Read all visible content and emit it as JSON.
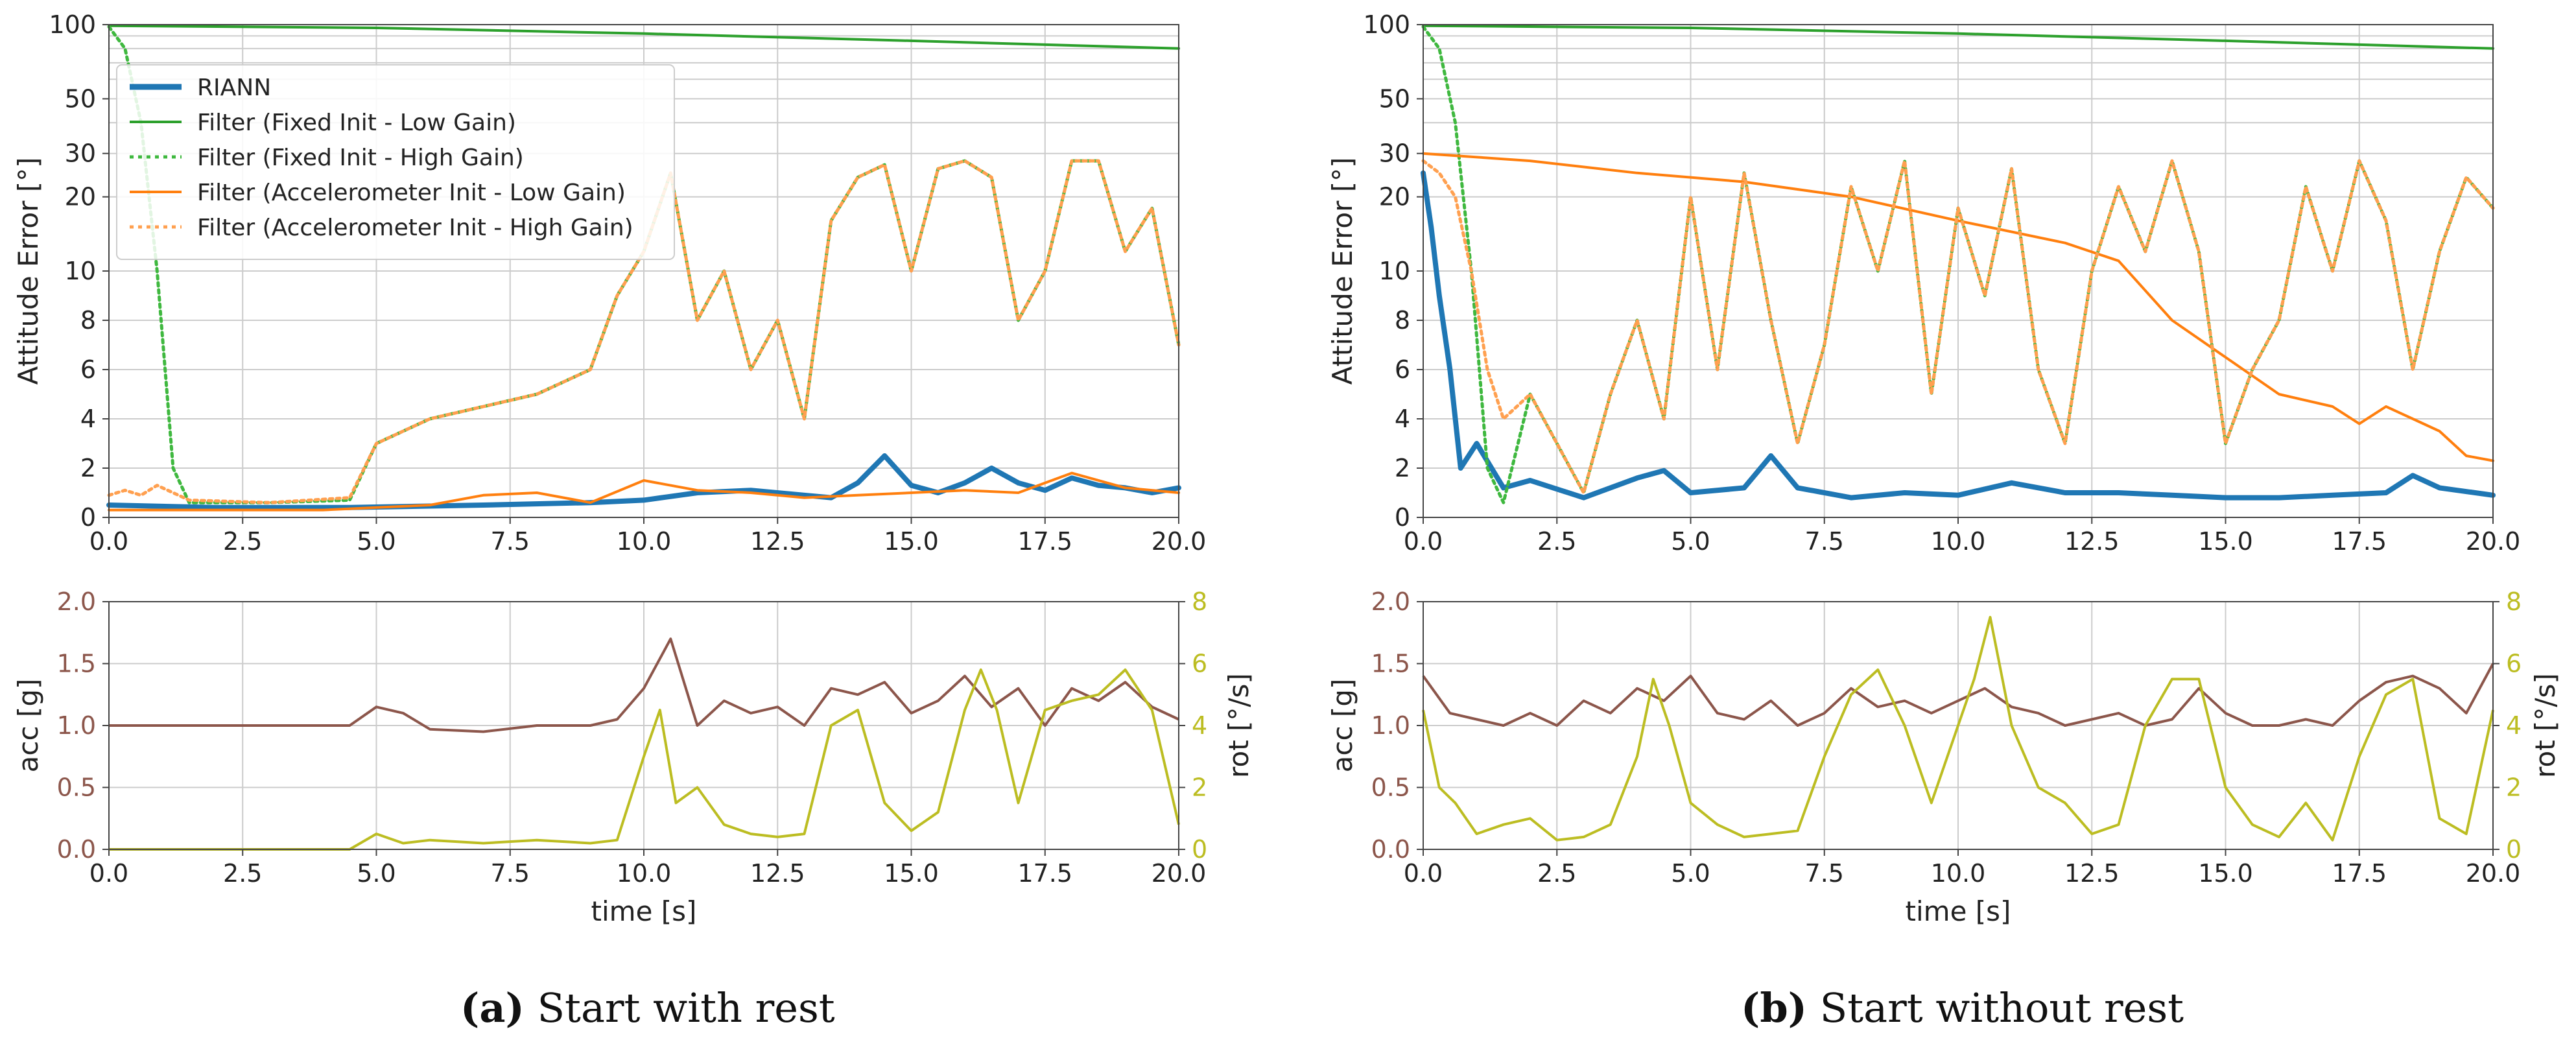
{
  "chart_data": [
    {
      "panel": "a",
      "type": "line",
      "subplot": "attitude-error",
      "ylabel": "Attitude Error [°]",
      "yscale": "piecewise: linear 0-10, log 10-100",
      "yticks": [
        "0",
        "2",
        "4",
        "6",
        "8",
        "10",
        "20",
        "30",
        "50",
        "100"
      ],
      "ylim": [
        0,
        100
      ],
      "xlim": [
        0,
        20
      ],
      "xticks": [
        "0.0",
        "2.5",
        "5.0",
        "7.5",
        "10.0",
        "12.5",
        "15.0",
        "17.5",
        "20.0"
      ],
      "legend": {
        "placement": "top-left",
        "entries": [
          "RIANN",
          "Filter (Fixed Init - Low Gain)",
          "Filter (Fixed Init - High Gain)",
          "Filter (Accelerometer Init - Low Gain)",
          "Filter (Accelerometer Init - High Gain)"
        ]
      },
      "series": [
        {
          "name": "RIANN",
          "x": [
            0,
            2,
            4.5,
            7,
            9,
            10,
            11,
            12,
            13,
            13.5,
            14,
            14.5,
            15,
            15.5,
            16,
            16.5,
            17,
            17.5,
            18,
            18.5,
            19,
            19.5,
            20
          ],
          "values": [
            0.5,
            0.4,
            0.4,
            0.5,
            0.6,
            0.7,
            1.0,
            1.1,
            0.9,
            0.8,
            1.4,
            2.5,
            1.3,
            1.0,
            1.4,
            2.0,
            1.4,
            1.1,
            1.6,
            1.3,
            1.2,
            1.0,
            1.2
          ]
        },
        {
          "name": "Filter (Fixed Init - Low Gain)",
          "x": [
            0,
            5,
            10,
            15,
            20
          ],
          "values": [
            99,
            97,
            92,
            86,
            80
          ]
        },
        {
          "name": "Filter (Fixed Init - High Gain)",
          "x": [
            0,
            0.3,
            0.6,
            0.9,
            1.2,
            1.5,
            3,
            4.5,
            5,
            6,
            7,
            8,
            9,
            9.5,
            10,
            10.5,
            11,
            11.5,
            12,
            12.5,
            13,
            13.5,
            14,
            14.5,
            15,
            15.5,
            16,
            16.5,
            17,
            17.5,
            18,
            18.5,
            19,
            19.5,
            20
          ],
          "values": [
            98,
            80,
            40,
            10,
            2,
            0.6,
            0.6,
            0.7,
            3,
            4,
            4.5,
            5,
            6,
            9,
            12,
            25,
            8,
            10,
            6,
            8,
            4,
            16,
            24,
            27,
            10,
            26,
            28,
            24,
            8,
            10,
            28,
            28,
            12,
            18,
            7
          ]
        },
        {
          "name": "Filter (Accelerometer Init - Low Gain)",
          "x": [
            0,
            2,
            4,
            5,
            6,
            7,
            8,
            9,
            10,
            11,
            12,
            13,
            14,
            15,
            16,
            17,
            18,
            19,
            20
          ],
          "values": [
            0.3,
            0.3,
            0.3,
            0.4,
            0.5,
            0.9,
            1.0,
            0.6,
            1.5,
            1.1,
            1.0,
            0.8,
            0.9,
            1.0,
            1.1,
            1.0,
            1.8,
            1.2,
            1.0
          ]
        },
        {
          "name": "Filter (Accelerometer Init - High Gain)",
          "x": [
            0,
            0.3,
            0.6,
            0.9,
            1.2,
            1.5,
            3,
            4.5,
            5,
            6,
            7,
            8,
            9,
            9.5,
            10,
            10.5,
            11,
            11.5,
            12,
            12.5,
            13,
            13.5,
            14,
            14.5,
            15,
            15.5,
            16,
            16.5,
            17,
            17.5,
            18,
            18.5,
            19,
            19.5,
            20
          ],
          "values": [
            0.9,
            1.1,
            0.9,
            1.3,
            1.0,
            0.7,
            0.6,
            0.8,
            3,
            4,
            4.5,
            5,
            6,
            9,
            12,
            25,
            8,
            10,
            6,
            8,
            4,
            16,
            24,
            27,
            10,
            26,
            28,
            24,
            8,
            10,
            28,
            28,
            12,
            18,
            7
          ]
        }
      ]
    },
    {
      "panel": "a",
      "type": "line",
      "subplot": "sensor",
      "xlabel": "time [s]",
      "ylabel": "acc [g]",
      "y2label": "rot [°/s]",
      "ylim": [
        0,
        2.0
      ],
      "y2lim": [
        0,
        8
      ],
      "xlim": [
        0,
        20
      ],
      "xticks": [
        "0.0",
        "2.5",
        "5.0",
        "7.5",
        "10.0",
        "12.5",
        "15.0",
        "17.5",
        "20.0"
      ],
      "yticks": [
        "0.0",
        "0.5",
        "1.0",
        "1.5",
        "2.0"
      ],
      "y2ticks": [
        "0",
        "2",
        "4",
        "6",
        "8"
      ],
      "series": [
        {
          "name": "acc",
          "axis": "left",
          "x": [
            0,
            4.5,
            5,
            5.5,
            6,
            7,
            8,
            9,
            9.5,
            10,
            10.5,
            11,
            11.5,
            12,
            12.5,
            13,
            13.5,
            14,
            14.5,
            15,
            15.5,
            16,
            16.5,
            17,
            17.5,
            18,
            18.5,
            19,
            19.5,
            20
          ],
          "values": [
            1.0,
            1.0,
            1.15,
            1.1,
            0.97,
            0.95,
            1.0,
            1.0,
            1.05,
            1.3,
            1.7,
            1.0,
            1.2,
            1.1,
            1.15,
            1.0,
            1.3,
            1.25,
            1.35,
            1.1,
            1.2,
            1.4,
            1.15,
            1.3,
            1.0,
            1.3,
            1.2,
            1.35,
            1.15,
            1.05
          ]
        },
        {
          "name": "rot",
          "axis": "right",
          "x": [
            0,
            4.5,
            5,
            5.5,
            6,
            7,
            8,
            9,
            9.5,
            10,
            10.3,
            10.6,
            11,
            11.5,
            12,
            12.5,
            13,
            13.5,
            14,
            14.5,
            15,
            15.5,
            16,
            16.3,
            16.6,
            17,
            17.5,
            18,
            18.5,
            19,
            19.5,
            20
          ],
          "values": [
            0,
            0,
            0.5,
            0.2,
            0.3,
            0.2,
            0.3,
            0.2,
            0.3,
            3,
            4.5,
            1.5,
            2,
            0.8,
            0.5,
            0.4,
            0.5,
            4,
            4.5,
            1.5,
            0.6,
            1.2,
            4.5,
            5.8,
            4.5,
            1.5,
            4.5,
            4.8,
            5,
            5.8,
            4.5,
            0.8
          ]
        }
      ]
    },
    {
      "panel": "b",
      "type": "line",
      "subplot": "attitude-error",
      "ylabel": "Attitude Error [°]",
      "yscale": "piecewise: linear 0-10, log 10-100",
      "yticks": [
        "0",
        "2",
        "4",
        "6",
        "8",
        "10",
        "20",
        "30",
        "50",
        "100"
      ],
      "ylim": [
        0,
        100
      ],
      "xlim": [
        0,
        20
      ],
      "xticks": [
        "0.0",
        "2.5",
        "5.0",
        "7.5",
        "10.0",
        "12.5",
        "15.0",
        "17.5",
        "20.0"
      ],
      "series": [
        {
          "name": "RIANN",
          "x": [
            0,
            0.15,
            0.3,
            0.5,
            0.7,
            1.0,
            1.5,
            2,
            3,
            4,
            4.5,
            5,
            6,
            6.5,
            7,
            8,
            9,
            10,
            11,
            12,
            13,
            14,
            15,
            16,
            17,
            18,
            18.5,
            19,
            20
          ],
          "values": [
            25,
            15,
            9,
            6,
            2,
            3,
            1.2,
            1.5,
            0.8,
            1.6,
            1.9,
            1.0,
            1.2,
            2.5,
            1.2,
            0.8,
            1.0,
            0.9,
            1.4,
            1.0,
            1.0,
            0.9,
            0.8,
            0.8,
            0.9,
            1.0,
            1.7,
            1.2,
            0.9
          ]
        },
        {
          "name": "Filter (Fixed Init - Low Gain)",
          "x": [
            0,
            5,
            10,
            15,
            20
          ],
          "values": [
            99,
            97,
            92,
            86,
            80
          ]
        },
        {
          "name": "Filter (Fixed Init - High Gain)",
          "x": [
            0,
            0.3,
            0.6,
            0.9,
            1.2,
            1.5,
            2,
            2.5,
            3,
            3.5,
            4,
            4.5,
            5,
            5.5,
            6,
            6.5,
            7,
            7.5,
            8,
            8.5,
            9,
            9.5,
            10,
            10.5,
            11,
            11.5,
            12,
            12.5,
            13,
            13.5,
            14,
            14.5,
            15,
            15.5,
            16,
            16.5,
            17,
            17.5,
            18,
            18.5,
            19,
            19.5,
            20
          ],
          "values": [
            98,
            80,
            40,
            10,
            2,
            0.6,
            5,
            3,
            1,
            5,
            8,
            4,
            20,
            6,
            25,
            8,
            3,
            7,
            22,
            10,
            28,
            5,
            18,
            9,
            26,
            6,
            3,
            10,
            22,
            12,
            28,
            12,
            3,
            6,
            8,
            22,
            10,
            28,
            16,
            6,
            12,
            24,
            18
          ]
        },
        {
          "name": "Filter (Accelerometer Init - Low Gain)",
          "x": [
            0,
            2,
            4,
            6,
            8,
            10,
            12,
            13,
            14,
            15,
            16,
            17,
            17.5,
            18,
            18.5,
            19,
            19.5,
            20
          ],
          "values": [
            30,
            28,
            25,
            23,
            20,
            16,
            13,
            11,
            8,
            6.5,
            5,
            4.5,
            3.8,
            4.5,
            4.0,
            3.5,
            2.5,
            2.3
          ]
        },
        {
          "name": "Filter (Accelerometer Init - High Gain)",
          "x": [
            0,
            0.3,
            0.6,
            0.9,
            1.2,
            1.5,
            2,
            2.5,
            3,
            3.5,
            4,
            4.5,
            5,
            5.5,
            6,
            6.5,
            7,
            7.5,
            8,
            8.5,
            9,
            9.5,
            10,
            10.5,
            11,
            11.5,
            12,
            12.5,
            13,
            13.5,
            14,
            14.5,
            15,
            15.5,
            16,
            16.5,
            17,
            17.5,
            18,
            18.5,
            19,
            19.5,
            20
          ],
          "values": [
            28,
            25,
            20,
            10,
            6,
            4,
            5,
            3,
            1,
            5,
            8,
            4,
            20,
            6,
            25,
            8,
            3,
            7,
            22,
            10,
            28,
            5,
            18,
            9,
            26,
            6,
            3,
            10,
            22,
            12,
            28,
            12,
            3,
            6,
            8,
            22,
            10,
            28,
            16,
            6,
            12,
            24,
            18
          ]
        }
      ]
    },
    {
      "panel": "b",
      "type": "line",
      "subplot": "sensor",
      "xlabel": "time [s]",
      "ylabel": "acc [g]",
      "y2label": "rot [°/s]",
      "ylim": [
        0,
        2.0
      ],
      "y2lim": [
        0,
        8
      ],
      "xlim": [
        0,
        20
      ],
      "xticks": [
        "0.0",
        "2.5",
        "5.0",
        "7.5",
        "10.0",
        "12.5",
        "15.0",
        "17.5",
        "20.0"
      ],
      "yticks": [
        "0.0",
        "0.5",
        "1.0",
        "1.5",
        "2.0"
      ],
      "y2ticks": [
        "0",
        "2",
        "4",
        "6",
        "8"
      ],
      "series": [
        {
          "name": "acc",
          "axis": "left",
          "x": [
            0,
            0.5,
            1,
            1.5,
            2,
            2.5,
            3,
            3.5,
            4,
            4.5,
            5,
            5.5,
            6,
            6.5,
            7,
            7.5,
            8,
            8.5,
            9,
            9.5,
            10,
            10.5,
            11,
            11.5,
            12,
            12.5,
            13,
            13.5,
            14,
            14.5,
            15,
            15.5,
            16,
            16.5,
            17,
            17.5,
            18,
            18.5,
            19,
            19.5,
            20
          ],
          "values": [
            1.4,
            1.1,
            1.05,
            1.0,
            1.1,
            1.0,
            1.2,
            1.1,
            1.3,
            1.2,
            1.4,
            1.1,
            1.05,
            1.2,
            1.0,
            1.1,
            1.3,
            1.15,
            1.2,
            1.1,
            1.2,
            1.3,
            1.15,
            1.1,
            1.0,
            1.05,
            1.1,
            1.0,
            1.05,
            1.3,
            1.1,
            1.0,
            1.0,
            1.05,
            1.0,
            1.2,
            1.35,
            1.4,
            1.3,
            1.1,
            1.5
          ]
        },
        {
          "name": "rot",
          "axis": "right",
          "x": [
            0,
            0.3,
            0.6,
            1,
            1.5,
            2,
            2.5,
            3,
            3.5,
            4,
            4.3,
            4.6,
            5,
            5.5,
            6,
            6.5,
            7,
            7.5,
            8,
            8.5,
            9,
            9.5,
            10,
            10.3,
            10.6,
            11,
            11.5,
            12,
            12.5,
            13,
            13.5,
            14,
            14.5,
            15,
            15.5,
            16,
            16.5,
            17,
            17.5,
            18,
            18.5,
            19,
            19.5,
            20
          ],
          "values": [
            4.5,
            2,
            1.5,
            0.5,
            0.8,
            1.0,
            0.3,
            0.4,
            0.8,
            3,
            5.5,
            4,
            1.5,
            0.8,
            0.4,
            0.5,
            0.6,
            3,
            5,
            5.8,
            4,
            1.5,
            4,
            5.5,
            7.5,
            4,
            2,
            1.5,
            0.5,
            0.8,
            4,
            5.5,
            5.5,
            2,
            0.8,
            0.4,
            1.5,
            0.3,
            3,
            5,
            5.5,
            1,
            0.5,
            4.5
          ]
        }
      ]
    }
  ],
  "panels": {
    "a": {
      "letter": "(a)",
      "caption": "Start with rest"
    },
    "b": {
      "letter": "(b)",
      "caption": "Start without rest"
    }
  },
  "colors": {
    "riann": "#1f77b4",
    "green": "#2ca02c",
    "green_dotted": "#3fb83f",
    "orange": "#ff7f0e",
    "orange_dotted": "#ffa050",
    "acc": "#8c564b",
    "rot": "#bcbd22",
    "grid": "#cccccc",
    "spine": "#444444"
  }
}
